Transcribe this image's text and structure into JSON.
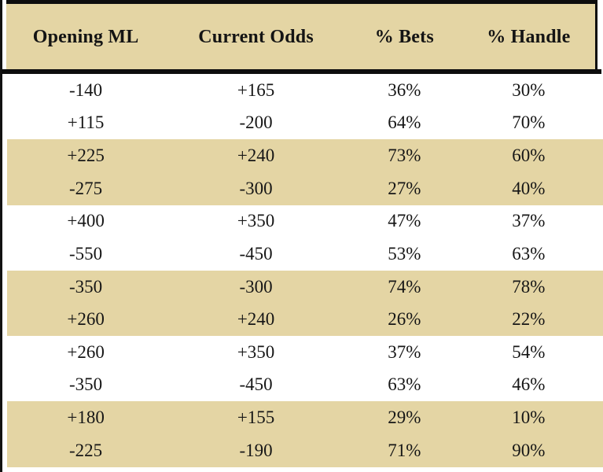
{
  "chart_data": {
    "type": "table",
    "title": "",
    "columns": [
      "Opening ML",
      "Current Odds",
      "% Bets",
      "% Handle"
    ],
    "rows": [
      [
        "-140",
        "+165",
        "36%",
        "30%"
      ],
      [
        "+115",
        "-200",
        "64%",
        "70%"
      ],
      [
        "+225",
        "+240",
        "73%",
        "60%"
      ],
      [
        "-275",
        "-300",
        "27%",
        "40%"
      ],
      [
        "+400",
        "+350",
        "47%",
        "37%"
      ],
      [
        "-550",
        "-450",
        "53%",
        "63%"
      ],
      [
        "-350",
        "-300",
        "74%",
        "78%"
      ],
      [
        "+260",
        "+240",
        "26%",
        "22%"
      ],
      [
        "+260",
        "+350",
        "37%",
        "54%"
      ],
      [
        "-350",
        "-450",
        "63%",
        "46%"
      ],
      [
        "+180",
        "+155",
        "29%",
        "10%"
      ],
      [
        "-225",
        "-190",
        "71%",
        "90%"
      ]
    ],
    "layout": {
      "row_striping": "pairs of rows alternate white and tan, starting with white",
      "grid": "no inner gridlines; thick black rule under header; black top border"
    },
    "colors": {
      "header_bg": "#e4d5a4",
      "stripe_bg": "#e4d5a4",
      "border": "#0d0d0d",
      "text": "#161616"
    }
  }
}
